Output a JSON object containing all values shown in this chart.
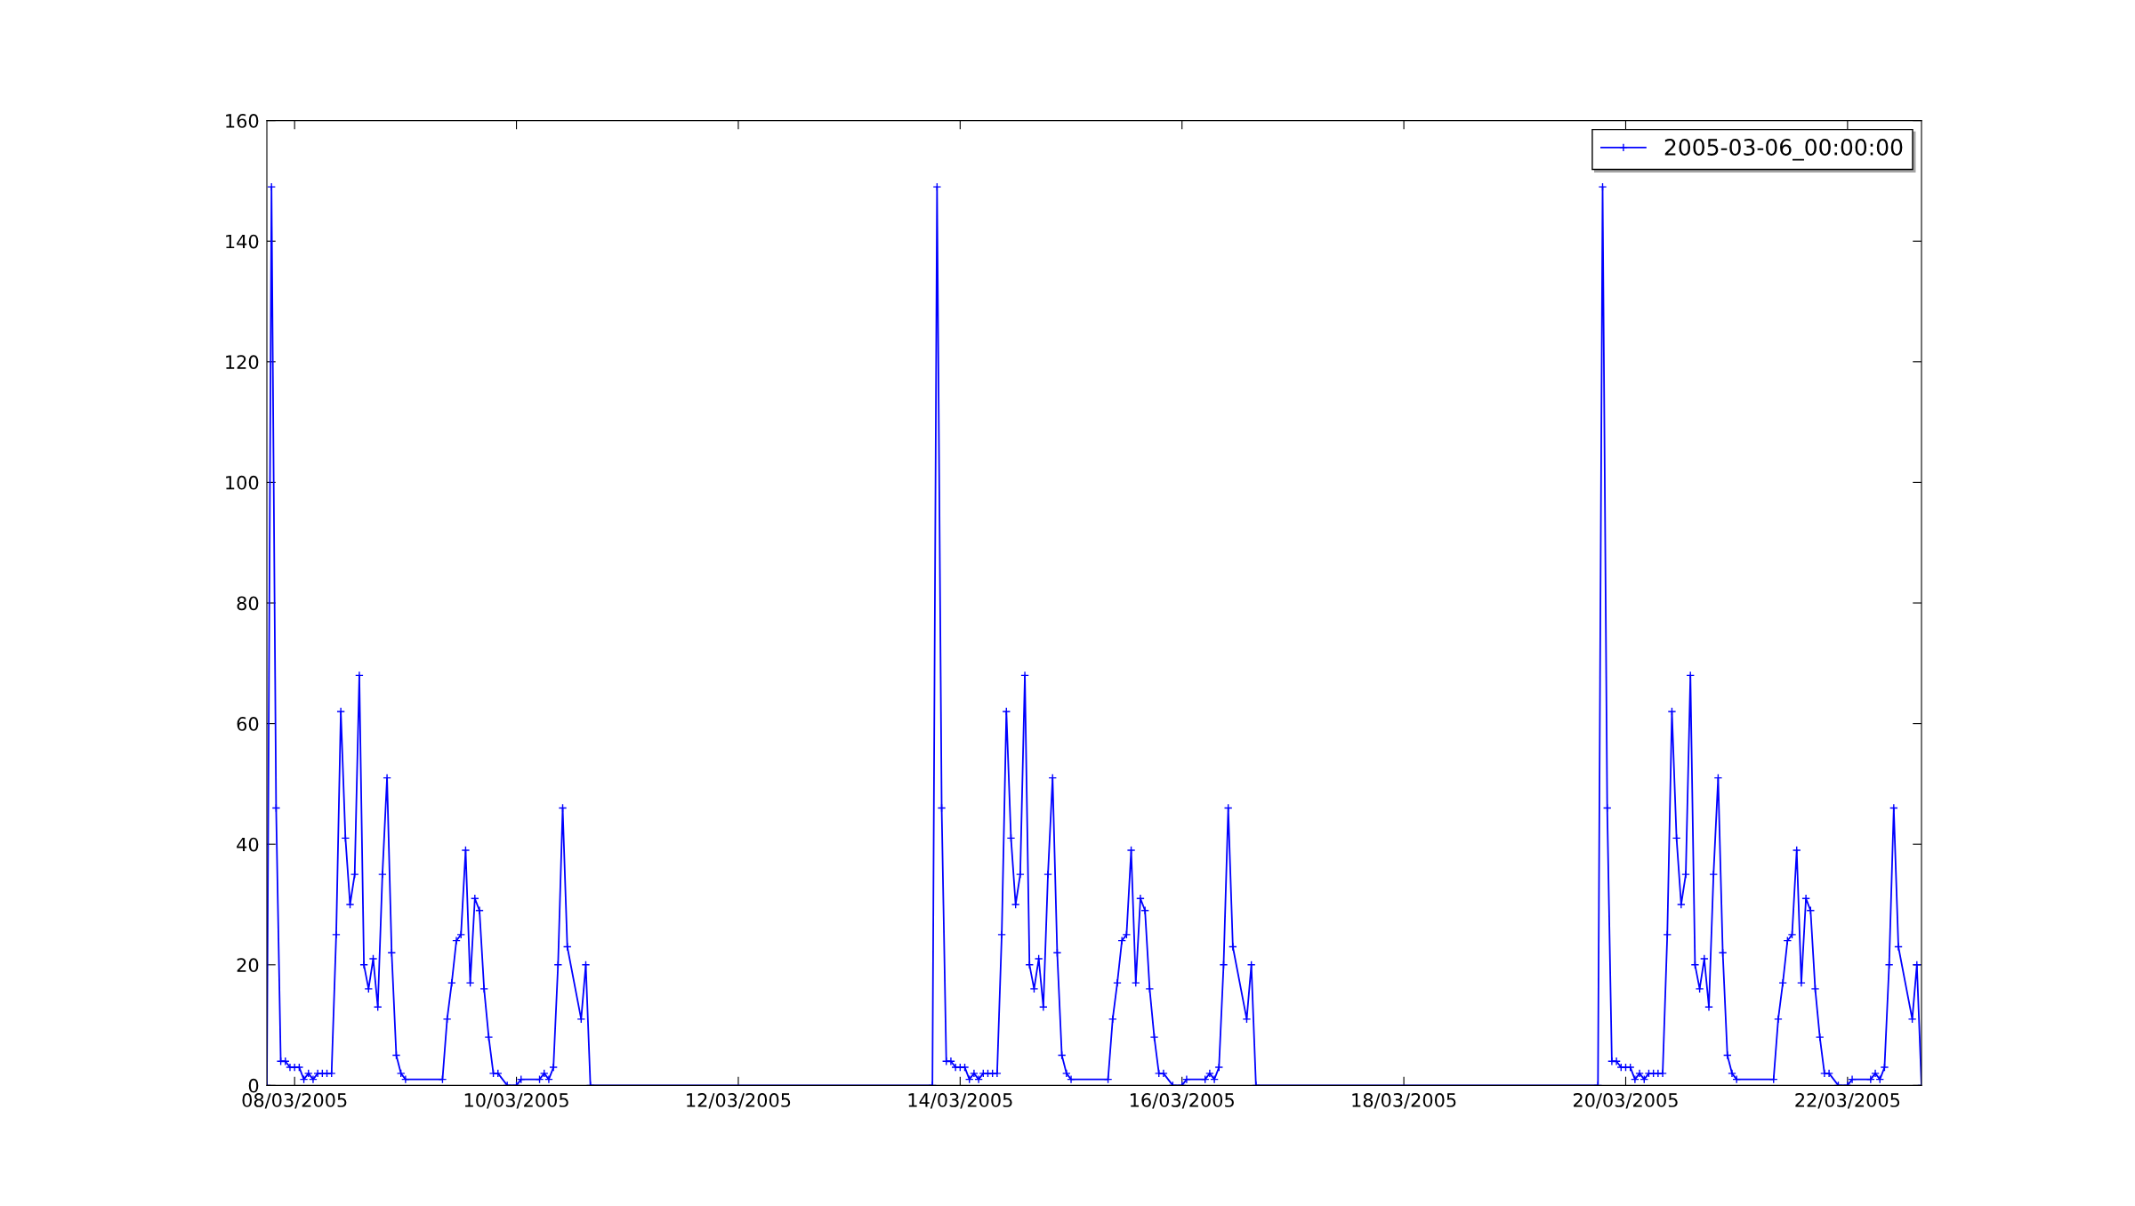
{
  "chart_data": {
    "type": "line",
    "series": [
      {
        "name": "2005-03-06_00:00:00",
        "color": "#0000ff",
        "x": [
          "2005-03-07T18:00",
          "2005-03-07T19:00",
          "2005-03-07T20:00",
          "2005-03-07T21:00",
          "2005-03-07T22:00",
          "2005-03-07T23:00",
          "2005-03-08T00:00",
          "2005-03-08T01:00",
          "2005-03-08T02:00",
          "2005-03-08T03:00",
          "2005-03-08T04:00",
          "2005-03-08T05:00",
          "2005-03-08T06:00",
          "2005-03-08T07:00",
          "2005-03-08T08:00",
          "2005-03-08T09:00",
          "2005-03-08T10:00",
          "2005-03-08T11:00",
          "2005-03-08T12:00",
          "2005-03-08T13:00",
          "2005-03-08T14:00",
          "2005-03-08T15:00",
          "2005-03-08T16:00",
          "2005-03-08T17:00",
          "2005-03-08T18:00",
          "2005-03-08T19:00",
          "2005-03-08T20:00",
          "2005-03-08T21:00",
          "2005-03-08T22:00",
          "2005-03-08T23:00",
          "2005-03-09T00:00",
          "2005-03-09T08:00",
          "2005-03-09T09:00",
          "2005-03-09T10:00",
          "2005-03-09T11:00",
          "2005-03-09T12:00",
          "2005-03-09T13:00",
          "2005-03-09T14:00",
          "2005-03-09T15:00",
          "2005-03-09T16:00",
          "2005-03-09T17:00",
          "2005-03-09T18:00",
          "2005-03-09T19:00",
          "2005-03-09T20:00",
          "2005-03-09T22:00",
          "2005-03-10T00:00",
          "2005-03-10T01:00",
          "2005-03-10T05:00",
          "2005-03-10T06:00",
          "2005-03-10T07:00",
          "2005-03-10T08:00",
          "2005-03-10T09:00",
          "2005-03-10T10:00",
          "2005-03-10T11:00",
          "2005-03-10T14:00",
          "2005-03-10T15:00",
          "2005-03-10T16:00",
          "2005-03-13T18:00",
          "2005-03-13T19:00",
          "2005-03-13T20:00",
          "2005-03-13T21:00",
          "2005-03-13T22:00",
          "2005-03-13T23:00",
          "2005-03-14T00:00",
          "2005-03-14T01:00",
          "2005-03-14T02:00",
          "2005-03-14T03:00",
          "2005-03-14T04:00",
          "2005-03-14T05:00",
          "2005-03-14T06:00",
          "2005-03-14T07:00",
          "2005-03-14T08:00",
          "2005-03-14T09:00",
          "2005-03-14T10:00",
          "2005-03-14T11:00",
          "2005-03-14T12:00",
          "2005-03-14T13:00",
          "2005-03-14T14:00",
          "2005-03-14T15:00",
          "2005-03-14T16:00",
          "2005-03-14T17:00",
          "2005-03-14T18:00",
          "2005-03-14T19:00",
          "2005-03-14T20:00",
          "2005-03-14T21:00",
          "2005-03-14T22:00",
          "2005-03-14T23:00",
          "2005-03-15T00:00",
          "2005-03-15T08:00",
          "2005-03-15T09:00",
          "2005-03-15T10:00",
          "2005-03-15T11:00",
          "2005-03-15T12:00",
          "2005-03-15T13:00",
          "2005-03-15T14:00",
          "2005-03-15T15:00",
          "2005-03-15T16:00",
          "2005-03-15T17:00",
          "2005-03-15T18:00",
          "2005-03-15T19:00",
          "2005-03-15T20:00",
          "2005-03-15T22:00",
          "2005-03-16T00:00",
          "2005-03-16T01:00",
          "2005-03-16T05:00",
          "2005-03-16T06:00",
          "2005-03-16T07:00",
          "2005-03-16T08:00",
          "2005-03-16T09:00",
          "2005-03-16T10:00",
          "2005-03-16T11:00",
          "2005-03-16T14:00",
          "2005-03-16T15:00",
          "2005-03-16T16:00",
          "2005-03-19T18:00",
          "2005-03-19T19:00",
          "2005-03-19T20:00",
          "2005-03-19T21:00",
          "2005-03-19T22:00",
          "2005-03-19T23:00",
          "2005-03-20T00:00",
          "2005-03-20T01:00",
          "2005-03-20T02:00",
          "2005-03-20T03:00",
          "2005-03-20T04:00",
          "2005-03-20T05:00",
          "2005-03-20T06:00",
          "2005-03-20T07:00",
          "2005-03-20T08:00",
          "2005-03-20T09:00",
          "2005-03-20T10:00",
          "2005-03-20T11:00",
          "2005-03-20T12:00",
          "2005-03-20T13:00",
          "2005-03-20T14:00",
          "2005-03-20T15:00",
          "2005-03-20T16:00",
          "2005-03-20T17:00",
          "2005-03-20T18:00",
          "2005-03-20T19:00",
          "2005-03-20T20:00",
          "2005-03-20T21:00",
          "2005-03-20T22:00",
          "2005-03-20T23:00",
          "2005-03-21T00:00",
          "2005-03-21T08:00",
          "2005-03-21T09:00",
          "2005-03-21T10:00",
          "2005-03-21T11:00",
          "2005-03-21T12:00",
          "2005-03-21T13:00",
          "2005-03-21T14:00",
          "2005-03-21T15:00",
          "2005-03-21T16:00",
          "2005-03-21T17:00",
          "2005-03-21T18:00",
          "2005-03-21T19:00",
          "2005-03-21T20:00",
          "2005-03-21T22:00",
          "2005-03-22T00:00",
          "2005-03-22T01:00",
          "2005-03-22T05:00",
          "2005-03-22T06:00",
          "2005-03-22T07:00",
          "2005-03-22T08:00",
          "2005-03-22T09:00",
          "2005-03-22T10:00",
          "2005-03-22T11:00",
          "2005-03-22T14:00",
          "2005-03-22T15:00",
          "2005-03-22T16:00"
        ],
        "values": [
          0,
          149,
          46,
          4,
          4,
          3,
          3,
          3,
          1,
          2,
          1,
          2,
          2,
          2,
          2,
          25,
          62,
          41,
          30,
          35,
          68,
          20,
          16,
          21,
          13,
          35,
          51,
          22,
          5,
          2,
          1,
          1,
          11,
          17,
          24,
          25,
          39,
          17,
          31,
          29,
          16,
          8,
          2,
          2,
          0,
          0,
          1,
          1,
          2,
          1,
          3,
          20,
          46,
          23,
          11,
          20,
          0,
          0,
          149,
          46,
          4,
          4,
          3,
          3,
          3,
          1,
          2,
          1,
          2,
          2,
          2,
          2,
          25,
          62,
          41,
          30,
          35,
          68,
          20,
          16,
          21,
          13,
          35,
          51,
          22,
          5,
          2,
          1,
          1,
          11,
          17,
          24,
          25,
          39,
          17,
          31,
          29,
          16,
          8,
          2,
          2,
          0,
          0,
          1,
          1,
          2,
          1,
          3,
          20,
          46,
          23,
          11,
          20,
          0,
          0,
          149,
          46,
          4,
          4,
          3,
          3,
          3,
          1,
          2,
          1,
          2,
          2,
          2,
          2,
          25,
          62,
          41,
          30,
          35,
          68,
          20,
          16,
          21,
          13,
          35,
          51,
          22,
          5,
          2,
          1,
          1,
          11,
          17,
          24,
          25,
          39,
          17,
          31,
          29,
          16,
          8,
          2,
          2,
          0,
          0,
          1,
          1,
          2,
          1,
          3,
          20,
          46,
          23,
          11,
          20,
          0
        ]
      }
    ],
    "xlim": [
      "2005-03-07T18:00",
      "2005-03-22T16:00"
    ],
    "xticks": [
      {
        "value": "2005-03-08",
        "label": "08/03/2005"
      },
      {
        "value": "2005-03-10",
        "label": "10/03/2005"
      },
      {
        "value": "2005-03-12",
        "label": "12/03/2005"
      },
      {
        "value": "2005-03-14",
        "label": "14/03/2005"
      },
      {
        "value": "2005-03-16",
        "label": "16/03/2005"
      },
      {
        "value": "2005-03-18",
        "label": "18/03/2005"
      },
      {
        "value": "2005-03-20",
        "label": "20/03/2005"
      },
      {
        "value": "2005-03-22",
        "label": "22/03/2005"
      }
    ],
    "ylim": [
      0,
      160
    ],
    "yticks": [
      0,
      20,
      40,
      60,
      80,
      100,
      120,
      140,
      160
    ],
    "grid": false,
    "legend": "top right",
    "marker": "cross",
    "line_style": "solid"
  }
}
